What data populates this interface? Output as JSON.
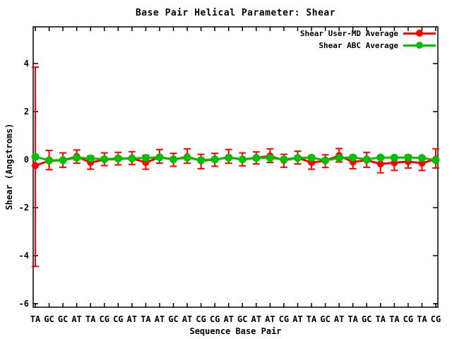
{
  "chart_data": {
    "type": "line",
    "title": "Base Pair Helical Parameter: Shear",
    "xlabel": "Sequence Base Pair",
    "ylabel": "Shear (Angstroms)",
    "yticks": [
      -6,
      -4,
      -2,
      0,
      2,
      4
    ],
    "ylim": [
      -6.15,
      5.5
    ],
    "grid": false,
    "legend_position": "top-right-inside",
    "categories": [
      "TA",
      "GC",
      "GC",
      "AT",
      "TA",
      "CG",
      "CG",
      "AT",
      "TA",
      "AT",
      "GC",
      "AT",
      "CG",
      "CG",
      "AT",
      "GC",
      "AT",
      "AT",
      "CG",
      "AT",
      "TA",
      "GC",
      "AT",
      "TA",
      "GC",
      "TA",
      "TA",
      "CG",
      "TA",
      "CG"
    ],
    "series": [
      {
        "name": "Shear User-MD Average",
        "color": "#ff0000",
        "style": "errorbars-line-points",
        "values": [
          -0.25,
          -0.05,
          -0.03,
          0.13,
          -0.12,
          0.0,
          0.03,
          0.05,
          -0.12,
          0.1,
          0.0,
          0.12,
          -0.05,
          0.0,
          0.1,
          0.0,
          0.07,
          0.15,
          -0.03,
          0.08,
          -0.12,
          -0.05,
          0.17,
          -0.1,
          -0.02,
          -0.18,
          -0.13,
          -0.08,
          -0.15,
          0.02
        ],
        "err_low": [
          -4.45,
          -0.42,
          -0.32,
          -0.15,
          -0.4,
          -0.25,
          -0.22,
          -0.2,
          -0.4,
          -0.15,
          -0.28,
          -0.15,
          -0.38,
          -0.28,
          -0.15,
          -0.26,
          -0.18,
          -0.12,
          -0.32,
          -0.18,
          -0.4,
          -0.33,
          -0.1,
          -0.38,
          -0.32,
          -0.55,
          -0.45,
          -0.35,
          -0.45,
          -0.35
        ],
        "err_high": [
          3.85,
          0.38,
          0.28,
          0.4,
          0.15,
          0.28,
          0.3,
          0.33,
          0.18,
          0.42,
          0.26,
          0.45,
          0.22,
          0.26,
          0.42,
          0.28,
          0.32,
          0.45,
          0.22,
          0.35,
          0.16,
          0.2,
          0.46,
          0.18,
          0.3,
          0.1,
          0.12,
          0.18,
          0.08,
          0.45
        ]
      },
      {
        "name": "Shear ABC Average",
        "color": "#00c000",
        "style": "line-points",
        "values": [
          0.12,
          -0.03,
          -0.02,
          0.08,
          0.05,
          0.02,
          0.05,
          0.05,
          0.07,
          0.1,
          0.01,
          0.08,
          -0.02,
          0.01,
          0.08,
          0.01,
          0.07,
          0.07,
          0.01,
          0.07,
          0.08,
          -0.03,
          0.07,
          0.09,
          0.01,
          0.09,
          0.08,
          0.09,
          0.07,
          -0.02
        ]
      }
    ]
  },
  "frame_color": "#000000"
}
